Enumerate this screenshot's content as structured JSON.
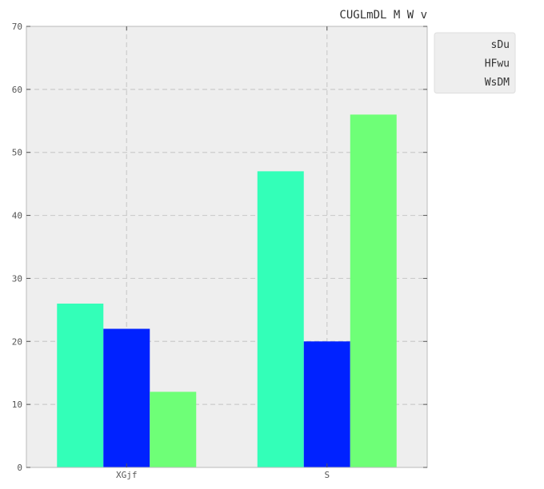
{
  "chart_data": {
    "type": "bar",
    "title": "CUGLmDL  M W v",
    "xlabel": "",
    "ylabel": "",
    "categories": [
      "XGjf",
      "S"
    ],
    "series": [
      {
        "name": "sDu",
        "values": [
          26,
          47
        ],
        "color": "#33ffb8"
      },
      {
        "name": "HFwu",
        "values": [
          22,
          20
        ],
        "color": "#0022ff"
      },
      {
        "name": "WsDM",
        "values": [
          12,
          56
        ],
        "color": "#6eff77"
      }
    ],
    "ylim": [
      0,
      70
    ],
    "yticks": [
      0,
      10,
      20,
      30,
      40,
      50,
      60,
      70
    ],
    "grid": true,
    "legend_position": "outside-top-right",
    "background_color": "#eeeeee",
    "grid_color": "#cccccc"
  }
}
